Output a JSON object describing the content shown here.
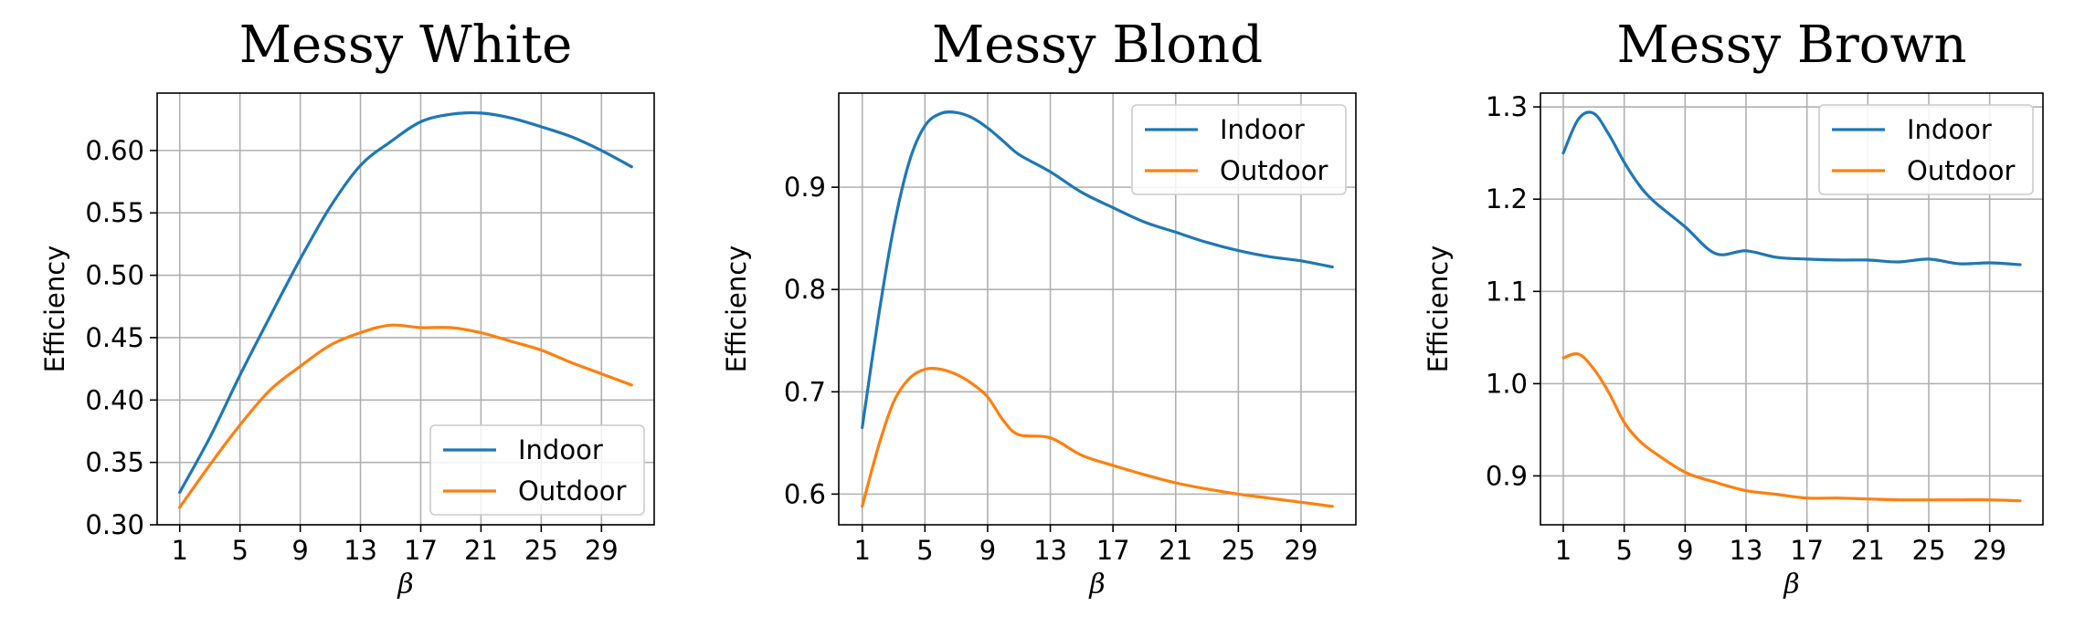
{
  "colors": {
    "indoor": "#1f77b4",
    "outdoor": "#ff7f0e",
    "grid": "#b0b0b0"
  },
  "chart_data": [
    {
      "type": "line",
      "title": "Messy White",
      "xlabel": "β",
      "ylabel": "Efficiency",
      "xticks": [
        1,
        5,
        9,
        13,
        17,
        21,
        25,
        29
      ],
      "yticks": [
        0.3,
        0.35,
        0.4,
        0.45,
        0.5,
        0.55,
        0.6
      ],
      "ytick_labels": [
        "0.30",
        "0.35",
        "0.40",
        "0.45",
        "0.50",
        "0.55",
        "0.60"
      ],
      "xlim": [
        -0.5,
        32.5
      ],
      "ylim": [
        0.3,
        0.646
      ],
      "grid": true,
      "legend_loc": "lower-right",
      "x": [
        1,
        3,
        5,
        7,
        9,
        11,
        13,
        15,
        17,
        19,
        21,
        23,
        25,
        27,
        29,
        31
      ],
      "series": [
        {
          "name": "Indoor",
          "values": [
            0.326,
            0.37,
            0.42,
            0.467,
            0.513,
            0.555,
            0.588,
            0.607,
            0.623,
            0.629,
            0.63,
            0.626,
            0.619,
            0.611,
            0.6,
            0.587
          ]
        },
        {
          "name": "Outdoor",
          "values": [
            0.314,
            0.348,
            0.38,
            0.408,
            0.427,
            0.444,
            0.454,
            0.46,
            0.458,
            0.458,
            0.454,
            0.447,
            0.44,
            0.43,
            0.421,
            0.412
          ]
        }
      ]
    },
    {
      "type": "line",
      "title": "Messy Blond",
      "xlabel": "β",
      "ylabel": "Efficiency",
      "xticks": [
        1,
        5,
        9,
        13,
        17,
        21,
        25,
        29
      ],
      "yticks": [
        0.6,
        0.7,
        0.8,
        0.9
      ],
      "ytick_labels": [
        "0.6",
        "0.7",
        "0.8",
        "0.9"
      ],
      "xlim": [
        -0.5,
        32.5
      ],
      "ylim": [
        0.57,
        0.992
      ],
      "grid": true,
      "legend_loc": "top-right",
      "x": [
        1,
        2,
        3,
        4,
        5,
        6,
        7,
        8,
        9,
        10,
        11,
        13,
        15,
        17,
        19,
        21,
        23,
        25,
        27,
        29,
        31
      ],
      "series": [
        {
          "name": "Indoor",
          "values": [
            0.665,
            0.77,
            0.86,
            0.925,
            0.96,
            0.972,
            0.973,
            0.968,
            0.958,
            0.945,
            0.932,
            0.915,
            0.895,
            0.88,
            0.866,
            0.856,
            0.846,
            0.838,
            0.832,
            0.828,
            0.822
          ]
        },
        {
          "name": "Outdoor",
          "values": [
            0.588,
            0.645,
            0.69,
            0.713,
            0.722,
            0.722,
            0.717,
            0.708,
            0.695,
            0.672,
            0.658,
            0.655,
            0.638,
            0.628,
            0.619,
            0.611,
            0.605,
            0.6,
            0.596,
            0.592,
            0.588
          ]
        }
      ]
    },
    {
      "type": "line",
      "title": "Messy Brown",
      "xlabel": "β",
      "ylabel": "Efficiency",
      "xticks": [
        1,
        5,
        9,
        13,
        17,
        21,
        25,
        29
      ],
      "yticks": [
        0.9,
        1.0,
        1.1,
        1.2,
        1.3
      ],
      "ytick_labels": [
        "0.9",
        "1.0",
        "1.1",
        "1.2",
        "1.3"
      ],
      "xlim": [
        -0.5,
        32.5
      ],
      "ylim": [
        0.847,
        1.315
      ],
      "grid": true,
      "legend_loc": "top-right",
      "x": [
        1,
        2,
        3,
        4,
        5,
        6,
        7,
        9,
        11,
        13,
        15,
        17,
        19,
        21,
        23,
        25,
        27,
        29,
        31
      ],
      "series": [
        {
          "name": "Indoor",
          "values": [
            1.25,
            1.287,
            1.293,
            1.27,
            1.24,
            1.215,
            1.197,
            1.17,
            1.141,
            1.144,
            1.137,
            1.135,
            1.134,
            1.134,
            1.132,
            1.135,
            1.13,
            1.131,
            1.129
          ]
        },
        {
          "name": "Outdoor",
          "values": [
            1.028,
            1.032,
            1.016,
            0.99,
            0.958,
            0.938,
            0.925,
            0.904,
            0.893,
            0.884,
            0.88,
            0.876,
            0.876,
            0.875,
            0.874,
            0.874,
            0.874,
            0.874,
            0.873
          ]
        }
      ]
    }
  ]
}
